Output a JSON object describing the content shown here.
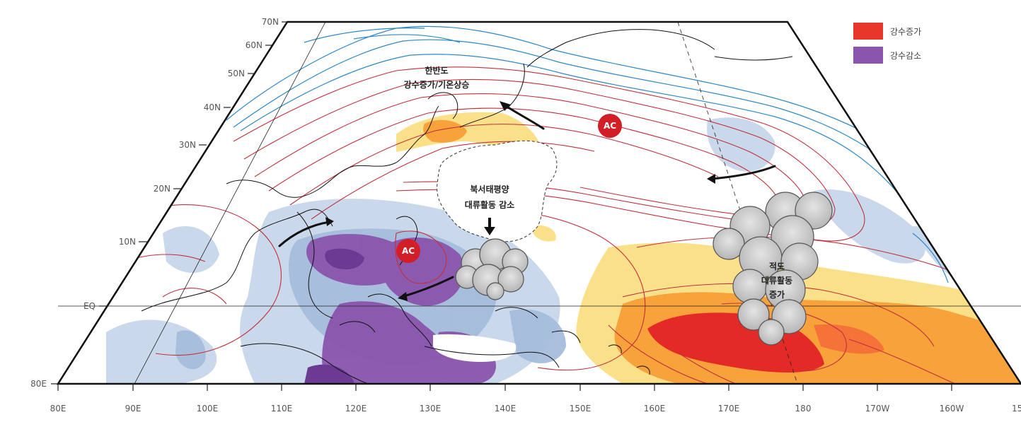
{
  "map": {
    "lat_labels": [
      "70N",
      "60N",
      "50N",
      "40N",
      "30N",
      "20N",
      "10N",
      "EQ",
      "80E"
    ],
    "lon_labels": [
      "80E",
      "90E",
      "100E",
      "110E",
      "120E",
      "130E",
      "140E",
      "150E",
      "160E",
      "170E",
      "180",
      "170W",
      "160W",
      "15"
    ],
    "legend": {
      "increase_label": "강수증가",
      "decrease_label": "강수감소",
      "increase_color": "#e8352a",
      "decrease_color": "#8a55ad"
    },
    "annotations": {
      "korea_line1": "한반도",
      "korea_line2": "강수증가/기온상승",
      "nwp_line1": "북서태평양",
      "nwp_line2": "대류활동 감소",
      "eq_line1": "적도",
      "eq_line2": "대류활동",
      "eq_line3": "증가",
      "ac_label_1": "AC",
      "ac_label_2": "AC"
    }
  }
}
